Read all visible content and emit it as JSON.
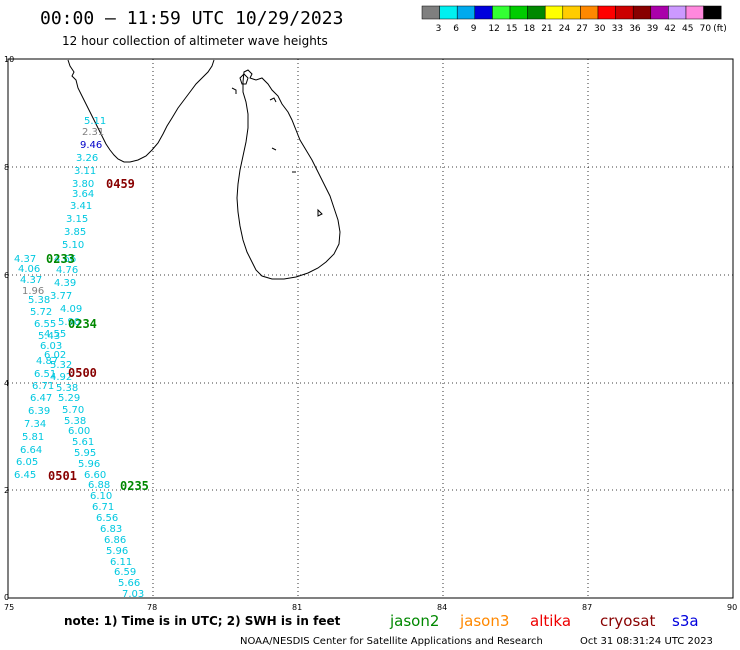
{
  "title": "00:00 – 11:59 UTC 10/29/2023",
  "subtitle": "12 hour collection of altimeter wave heights",
  "legend": {
    "labels": [
      "3",
      "6",
      "9",
      "12",
      "15",
      "18",
      "21",
      "24",
      "27",
      "30",
      "33",
      "36",
      "39",
      "42",
      "45",
      "70",
      "(ft)"
    ],
    "colors": [
      "#7f7f7f",
      "#00f0f0",
      "#00aaee",
      "#0000dd",
      "#33ff33",
      "#00cc00",
      "#008800",
      "#ffff00",
      "#ffcc00",
      "#ff8800",
      "#ff0000",
      "#cc0000",
      "#880000",
      "#aa00aa",
      "#cc99ff",
      "#ff88dd",
      "#000000"
    ]
  },
  "axes": {
    "x_ticks": [
      "75",
      "78",
      "81",
      "84",
      "87",
      "90"
    ],
    "y_ticks": [
      "0",
      "2",
      "4",
      "6",
      "8",
      "10"
    ]
  },
  "wave_points": [
    {
      "t": "5.11",
      "c": "#00c8e0"
    },
    {
      "t": "2.31",
      "c": "#7f7f7f"
    },
    {
      "t": "9.46",
      "c": "#0000c8"
    },
    {
      "t": "3.26",
      "c": "#00c8e0"
    },
    {
      "t": "3.11",
      "c": "#00c8e0"
    },
    {
      "t": "3.80",
      "c": "#00c8e0"
    },
    {
      "t": "3.64",
      "c": "#00c8e0"
    },
    {
      "t": "3.41",
      "c": "#00c8e0"
    },
    {
      "t": "3.15",
      "c": "#00c8e0"
    },
    {
      "t": "3.85",
      "c": "#00c8e0"
    },
    {
      "t": "5.10",
      "c": "#00c8e0"
    },
    {
      "t": "4.37",
      "c": "#00c8e0"
    },
    {
      "t": "4.66",
      "c": "#00c8e0"
    },
    {
      "t": "4.06",
      "c": "#00c8e0"
    },
    {
      "t": "4.76",
      "c": "#00c8e0"
    },
    {
      "t": "4.37",
      "c": "#00c8e0"
    },
    {
      "t": "4.39",
      "c": "#00c8e0"
    },
    {
      "t": "1.96",
      "c": "#7f7f7f"
    },
    {
      "t": "3.77",
      "c": "#00c8e0"
    },
    {
      "t": "5.38",
      "c": "#00c8e0"
    },
    {
      "t": "4.09",
      "c": "#00c8e0"
    },
    {
      "t": "5.72",
      "c": "#00c8e0"
    },
    {
      "t": "5.90",
      "c": "#00c8e0"
    },
    {
      "t": "6.55",
      "c": "#00c8e0"
    },
    {
      "t": "4.55",
      "c": "#00c8e0"
    },
    {
      "t": "5.43",
      "c": "#00c8e0"
    },
    {
      "t": "6.03",
      "c": "#00c8e0"
    },
    {
      "t": "6.02",
      "c": "#00c8e0"
    },
    {
      "t": "4.87",
      "c": "#00c8e0"
    },
    {
      "t": "5.32",
      "c": "#00c8e0"
    },
    {
      "t": "6.51",
      "c": "#00c8e0"
    },
    {
      "t": "4.92",
      "c": "#00c8e0"
    },
    {
      "t": "6.71",
      "c": "#00c8e0"
    },
    {
      "t": "5.38",
      "c": "#00c8e0"
    },
    {
      "t": "6.47",
      "c": "#00c8e0"
    },
    {
      "t": "5.29",
      "c": "#00c8e0"
    },
    {
      "t": "6.39",
      "c": "#00c8e0"
    },
    {
      "t": "5.70",
      "c": "#00c8e0"
    },
    {
      "t": "7.34",
      "c": "#00c8e0"
    },
    {
      "t": "5.38",
      "c": "#00c8e0"
    },
    {
      "t": "6.00",
      "c": "#00c8e0"
    },
    {
      "t": "5.81",
      "c": "#00c8e0"
    },
    {
      "t": "5.61",
      "c": "#00c8e0"
    },
    {
      "t": "6.64",
      "c": "#00c8e0"
    },
    {
      "t": "5.95",
      "c": "#00c8e0"
    },
    {
      "t": "6.05",
      "c": "#00c8e0"
    },
    {
      "t": "5.96",
      "c": "#00c8e0"
    },
    {
      "t": "6.45",
      "c": "#00c8e0"
    },
    {
      "t": "6.60",
      "c": "#00c8e0"
    },
    {
      "t": "6.88",
      "c": "#00c8e0"
    },
    {
      "t": "6.10",
      "c": "#00c8e0"
    },
    {
      "t": "6.71",
      "c": "#00c8e0"
    },
    {
      "t": "6.56",
      "c": "#00c8e0"
    },
    {
      "t": "6.83",
      "c": "#00c8e0"
    },
    {
      "t": "6.86",
      "c": "#00c8e0"
    },
    {
      "t": "5.96",
      "c": "#00c8e0"
    },
    {
      "t": "6.11",
      "c": "#00c8e0"
    },
    {
      "t": "6.59",
      "c": "#00c8e0"
    },
    {
      "t": "5.66",
      "c": "#00c8e0"
    },
    {
      "t": "7.03",
      "c": "#00c8e0"
    }
  ],
  "pass_labels": [
    {
      "t": "0459",
      "c": "#880000"
    },
    {
      "t": "0233",
      "c": "#008800"
    },
    {
      "t": "0234",
      "c": "#008800"
    },
    {
      "t": "0500",
      "c": "#880000"
    },
    {
      "t": "0501",
      "c": "#880000"
    },
    {
      "t": "0235",
      "c": "#008800"
    }
  ],
  "note": "note: 1) Time is in UTC; 2) SWH is in feet",
  "satellites": [
    {
      "name": "jason2",
      "color": "#0000dd"
    },
    {
      "name": "jason3",
      "color": "#008800"
    },
    {
      "name": "altika",
      "color": "#ff8800"
    },
    {
      "name": "cryosat",
      "color": "#ee0000"
    },
    {
      "name": "s3a",
      "color": "#880000"
    }
  ],
  "footer": {
    "org": "NOAA/NESDIS Center for Satellite Applications and Research",
    "stamp": "Oct 31 08:31:24 UTC 2023"
  }
}
